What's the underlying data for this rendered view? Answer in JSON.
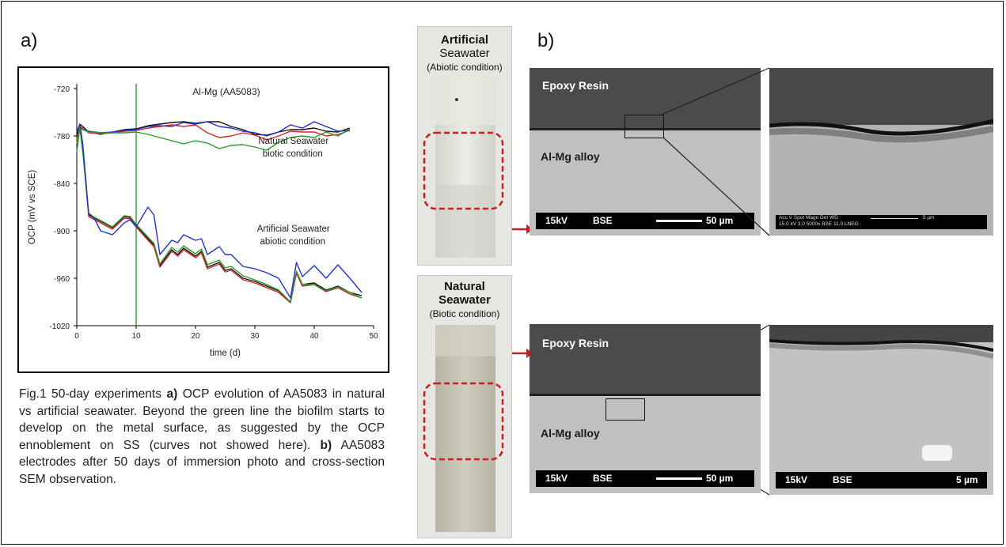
{
  "panel_a_label": "a)",
  "panel_b_label": "b)",
  "caption": {
    "prefix": "Fig.1 50-day experiments ",
    "a_bold": "a)",
    "a_text": " OCP evolution of AA5083 in natural vs artificial seawater. Beyond the green line the biofilm starts to develop on the metal surface, as suggested by the OCP ennoblement on SS (curves not showed here). ",
    "b_bold": "b)",
    "b_text": " AA5083 electrodes after 50 days of immersion photo and cross-section SEM observation."
  },
  "chart_data": {
    "type": "line",
    "title": "Al-Mg (AA5083)",
    "xlabel": "time (d)",
    "ylabel": "OCP (mV vs SCE)",
    "xlim": [
      0,
      50
    ],
    "ylim": [
      -1020,
      -720
    ],
    "xticks": [
      0,
      10,
      20,
      30,
      40,
      50
    ],
    "yticks": [
      -720,
      -780,
      -840,
      -900,
      -960,
      -1020
    ],
    "vline_x": 10,
    "vline_color": "#2ca02c",
    "annotations": [
      {
        "lines": [
          "Natural Seawater",
          "biotic condition"
        ],
        "x": 36.5,
        "y": -790
      },
      {
        "lines": [
          "Artificial Seawater",
          "abiotic condition"
        ],
        "x": 36.5,
        "y": -901
      }
    ],
    "series": [
      {
        "color": "#111111",
        "group": "natural",
        "x": [
          0,
          0.5,
          1,
          2,
          4,
          6,
          8,
          10,
          12,
          14,
          16,
          18,
          20,
          22,
          24,
          26,
          28,
          30,
          32,
          34,
          36,
          38,
          40,
          42,
          44,
          46
        ],
        "y": [
          -780,
          -765,
          -768,
          -775,
          -778,
          -775,
          -772,
          -771,
          -767,
          -765,
          -763,
          -762,
          -764,
          -762,
          -762,
          -768,
          -772,
          -778,
          -779,
          -775,
          -772,
          -772,
          -770,
          -774,
          -775,
          -770
        ]
      },
      {
        "color": "#d62728",
        "group": "natural",
        "x": [
          0,
          0.5,
          1,
          2,
          4,
          6,
          8,
          10,
          12,
          14,
          16,
          18,
          20,
          22,
          24,
          26,
          28,
          30,
          32,
          34,
          36,
          38,
          40,
          42,
          44,
          46
        ],
        "y": [
          -790,
          -768,
          -770,
          -776,
          -777,
          -776,
          -774,
          -773,
          -770,
          -768,
          -766,
          -768,
          -766,
          -776,
          -782,
          -780,
          -776,
          -779,
          -785,
          -780,
          -774,
          -775,
          -775,
          -780,
          -778,
          -773
        ]
      },
      {
        "color": "#2233cc",
        "group": "natural",
        "x": [
          0,
          0.5,
          1,
          2,
          4,
          6,
          8,
          10,
          12,
          14,
          16,
          18,
          20,
          22,
          24,
          26,
          28,
          30,
          32,
          34,
          36,
          38,
          40,
          42,
          44,
          46
        ],
        "y": [
          -785,
          -770,
          -772,
          -774,
          -776,
          -775,
          -773,
          -772,
          -768,
          -767,
          -768,
          -763,
          -765,
          -762,
          -768,
          -770,
          -774,
          -776,
          -780,
          -775,
          -766,
          -770,
          -762,
          -768,
          -774,
          -773
        ]
      },
      {
        "color": "#2a9a2a",
        "group": "natural",
        "x": [
          0,
          0.5,
          1,
          2,
          4,
          6,
          8,
          10,
          12,
          14,
          16,
          18,
          20,
          22,
          24,
          26,
          28,
          30,
          32,
          34,
          36,
          38,
          40,
          42,
          44,
          46
        ],
        "y": [
          -800,
          -770,
          -772,
          -775,
          -776,
          -776,
          -776,
          -775,
          -778,
          -782,
          -786,
          -790,
          -786,
          -789,
          -796,
          -792,
          -791,
          -794,
          -798,
          -788,
          -782,
          -780,
          -782,
          -775,
          -780,
          -771
        ]
      },
      {
        "color": "#111111",
        "group": "artificial",
        "x": [
          0,
          0.5,
          1,
          2,
          3,
          4,
          6,
          8,
          9,
          10,
          12,
          13,
          14,
          16,
          17,
          18,
          20,
          21,
          22,
          24,
          25,
          26,
          28,
          30,
          32,
          34,
          36,
          37,
          38,
          40,
          42,
          44,
          46,
          48
        ],
        "y": [
          -780,
          -765,
          -790,
          -880,
          -884,
          -888,
          -896,
          -882,
          -883,
          -893,
          -910,
          -918,
          -944,
          -924,
          -930,
          -922,
          -932,
          -926,
          -946,
          -940,
          -950,
          -948,
          -960,
          -964,
          -970,
          -976,
          -990,
          -952,
          -968,
          -966,
          -975,
          -970,
          -978,
          -982
        ]
      },
      {
        "color": "#d62728",
        "group": "artificial",
        "x": [
          0,
          0.5,
          1,
          2,
          3,
          4,
          6,
          8,
          9,
          10,
          12,
          13,
          14,
          16,
          17,
          18,
          20,
          21,
          22,
          24,
          25,
          26,
          28,
          30,
          32,
          34,
          36,
          37,
          38,
          40,
          42,
          44,
          46,
          48
        ],
        "y": [
          -785,
          -768,
          -795,
          -882,
          -886,
          -890,
          -898,
          -884,
          -885,
          -895,
          -912,
          -920,
          -946,
          -926,
          -932,
          -924,
          -934,
          -928,
          -948,
          -942,
          -952,
          -950,
          -962,
          -966,
          -972,
          -978,
          -991,
          -954,
          -970,
          -968,
          -977,
          -972,
          -980,
          -985
        ]
      },
      {
        "color": "#2a9a2a",
        "group": "artificial",
        "x": [
          0,
          0.5,
          1,
          2,
          3,
          4,
          6,
          8,
          9,
          10,
          12,
          13,
          14,
          16,
          17,
          18,
          20,
          21,
          22,
          24,
          25,
          26,
          28,
          30,
          32,
          34,
          36,
          37,
          38,
          40,
          42,
          44,
          46,
          48
        ],
        "y": [
          -790,
          -770,
          -800,
          -878,
          -883,
          -887,
          -895,
          -881,
          -882,
          -892,
          -908,
          -916,
          -942,
          -921,
          -927,
          -919,
          -929,
          -923,
          -943,
          -937,
          -947,
          -945,
          -957,
          -962,
          -968,
          -975,
          -990,
          -951,
          -968,
          -968,
          -976,
          -971,
          -978,
          -985
        ]
      },
      {
        "color": "#2233cc",
        "group": "artificial",
        "x": [
          0,
          0.5,
          1,
          2,
          3,
          4,
          6,
          8,
          9,
          10,
          12,
          13,
          14,
          16,
          17,
          18,
          20,
          21,
          22,
          24,
          25,
          26,
          28,
          30,
          32,
          34,
          36,
          37,
          38,
          40,
          42,
          44,
          46,
          48
        ],
        "y": [
          -775,
          -765,
          -790,
          -878,
          -885,
          -900,
          -905,
          -890,
          -886,
          -895,
          -870,
          -880,
          -930,
          -912,
          -915,
          -905,
          -912,
          -910,
          -930,
          -920,
          -930,
          -930,
          -945,
          -948,
          -953,
          -960,
          -985,
          -940,
          -958,
          -944,
          -960,
          -943,
          -960,
          -978
        ]
      }
    ]
  },
  "photos": [
    {
      "title_bold": "Artificial",
      "title_line2": "Seawater",
      "title_line3": "(Abiotic condition)",
      "second_bold": false
    },
    {
      "title_bold": "Natural",
      "title_line2": "Seawater",
      "title_line3": "(Biotic condition)",
      "second_bold": true
    }
  ],
  "sem_top": {
    "epoxy_label": "Epoxy Resin",
    "alloy_label": "Al-Mg alloy",
    "kv": "15kV",
    "mode": "BSE",
    "scale": "50 µm",
    "zoom_info": "Acc.V  Spot Magn   Det  WD",
    "zoom_info2": "15.0 kV 3.0  5000x   BSE  11.0 LNEG",
    "zoom_scale": "5 µm"
  },
  "sem_bottom": {
    "epoxy_label": "Epoxy Resin",
    "alloy_label": "Al-Mg alloy",
    "kv": "15kV",
    "mode": "BSE",
    "scale": "50 µm",
    "zoom_kv": "15kV",
    "zoom_mode": "BSE",
    "zoom_scale": "5 µm"
  }
}
